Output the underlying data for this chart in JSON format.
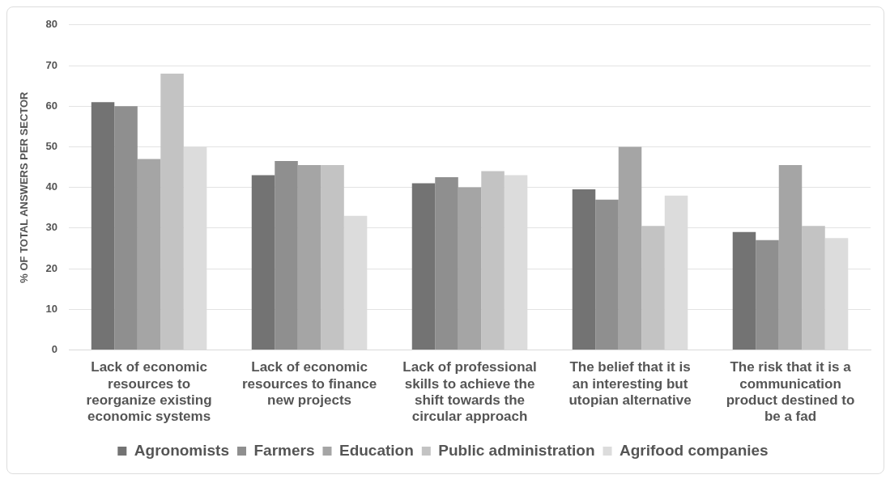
{
  "chart_data": {
    "type": "bar",
    "ylabel": "% OF TOTAL ANSWERS PER SECTOR",
    "categories": [
      "Lack of economic resources to reorganize existing economic systems",
      "Lack of economic resources to finance new projects",
      "Lack of professional skills to achieve the shift towards the circular approach",
      "The belief that it is an interesting but utopian alternative",
      "The risk that it is a communication product destined to be a fad"
    ],
    "series": [
      {
        "name": "Agronomists",
        "color": "#737373",
        "values": [
          61,
          43,
          41,
          39.5,
          29
        ]
      },
      {
        "name": "Farmers",
        "color": "#8f8f8f",
        "values": [
          60,
          46.5,
          42.5,
          37,
          27
        ]
      },
      {
        "name": "Education",
        "color": "#a5a5a5",
        "values": [
          47,
          45.5,
          40,
          50,
          45.5
        ]
      },
      {
        "name": "Public administration",
        "color": "#c3c3c3",
        "values": [
          68,
          45.5,
          44,
          30.5,
          30.5
        ]
      },
      {
        "name": "Agrifood companies",
        "color": "#dcdcdc",
        "values": [
          50,
          33,
          43,
          38,
          27.5
        ]
      }
    ],
    "ylim": [
      0,
      80
    ],
    "yticks": [
      0,
      10,
      20,
      30,
      40,
      50,
      60,
      70,
      80
    ],
    "grid": "y",
    "legend": "bottom"
  }
}
